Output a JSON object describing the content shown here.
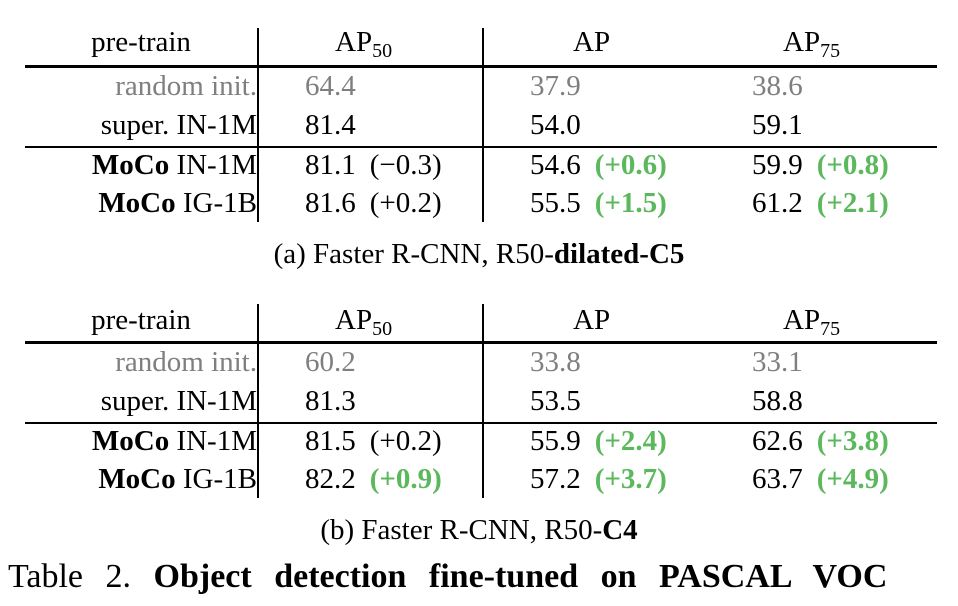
{
  "tables": [
    {
      "headers": {
        "pretrain": "pre-train",
        "ap50_base": "AP",
        "ap50_sub": "50",
        "ap": "AP",
        "ap75_base": "AP",
        "ap75_sub": "75"
      },
      "rows": [
        {
          "method": "",
          "data": "random init.",
          "ap50": "64.4",
          "ap50_delta": "",
          "ap": "37.9",
          "ap_delta": "",
          "ap75": "38.6",
          "ap75_delta": "",
          "style": "gray"
        },
        {
          "method": "",
          "data": "super.  IN-1M",
          "ap50": "81.4",
          "ap50_delta": "",
          "ap": "54.0",
          "ap_delta": "",
          "ap75": "59.1",
          "ap75_delta": "",
          "style": "normal"
        },
        {
          "method": "MoCo",
          "data": "IN-1M",
          "ap50": "81.1",
          "ap50_delta": "(−0.3)",
          "ap": "54.6",
          "ap_delta": "(+0.6)",
          "ap75": "59.9",
          "ap75_delta": "(+0.8)",
          "style": "normal"
        },
        {
          "method": "MoCo",
          "data": "IG-1B",
          "ap50": "81.6",
          "ap50_delta": "(+0.2)",
          "ap": "55.5",
          "ap_delta": "(+1.5)",
          "ap75": "61.2",
          "ap75_delta": "(+2.1)",
          "style": "normal"
        }
      ],
      "caption_prefix": "(a) Faster R-CNN, R50-",
      "caption_bold": "dilated-C5"
    },
    {
      "headers": {
        "pretrain": "pre-train",
        "ap50_base": "AP",
        "ap50_sub": "50",
        "ap": "AP",
        "ap75_base": "AP",
        "ap75_sub": "75"
      },
      "rows": [
        {
          "method": "",
          "data": "random init.",
          "ap50": "60.2",
          "ap50_delta": "",
          "ap": "33.8",
          "ap_delta": "",
          "ap75": "33.1",
          "ap75_delta": "",
          "style": "gray"
        },
        {
          "method": "",
          "data": "super.  IN-1M",
          "ap50": "81.3",
          "ap50_delta": "",
          "ap": "53.5",
          "ap_delta": "",
          "ap75": "58.8",
          "ap75_delta": "",
          "style": "normal"
        },
        {
          "method": "MoCo",
          "data": "IN-1M",
          "ap50": "81.5",
          "ap50_delta": "(+0.2)",
          "ap": "55.9",
          "ap_delta": "(+2.4)",
          "ap75": "62.6",
          "ap75_delta": "(+3.8)",
          "style": "normal"
        },
        {
          "method": "MoCo",
          "data": "IG-1B",
          "ap50": "82.2",
          "ap50_delta": "(+0.9)",
          "ap": "57.2",
          "ap_delta": "(+3.7)",
          "ap75": "63.7",
          "ap75_delta": "(+4.9)",
          "style": "normal"
        }
      ],
      "caption_prefix": "(b) Faster R-CNN, R50-",
      "caption_bold": "C4"
    }
  ],
  "table_caption": {
    "label": "Table 2.",
    "bold": "Object detection fine-tuned on PASCAL VOC"
  },
  "colors": {
    "gain": "#5cb85c",
    "baseline": "#7f7f7f"
  },
  "green_deltas": {
    "t0": {
      "ap50": [
        false,
        false,
        false,
        false
      ],
      "ap": [
        false,
        false,
        true,
        true
      ],
      "ap75": [
        false,
        false,
        true,
        true
      ]
    },
    "t1": {
      "ap50": [
        false,
        false,
        false,
        true
      ],
      "ap": [
        false,
        false,
        true,
        true
      ],
      "ap75": [
        false,
        false,
        true,
        true
      ]
    }
  }
}
